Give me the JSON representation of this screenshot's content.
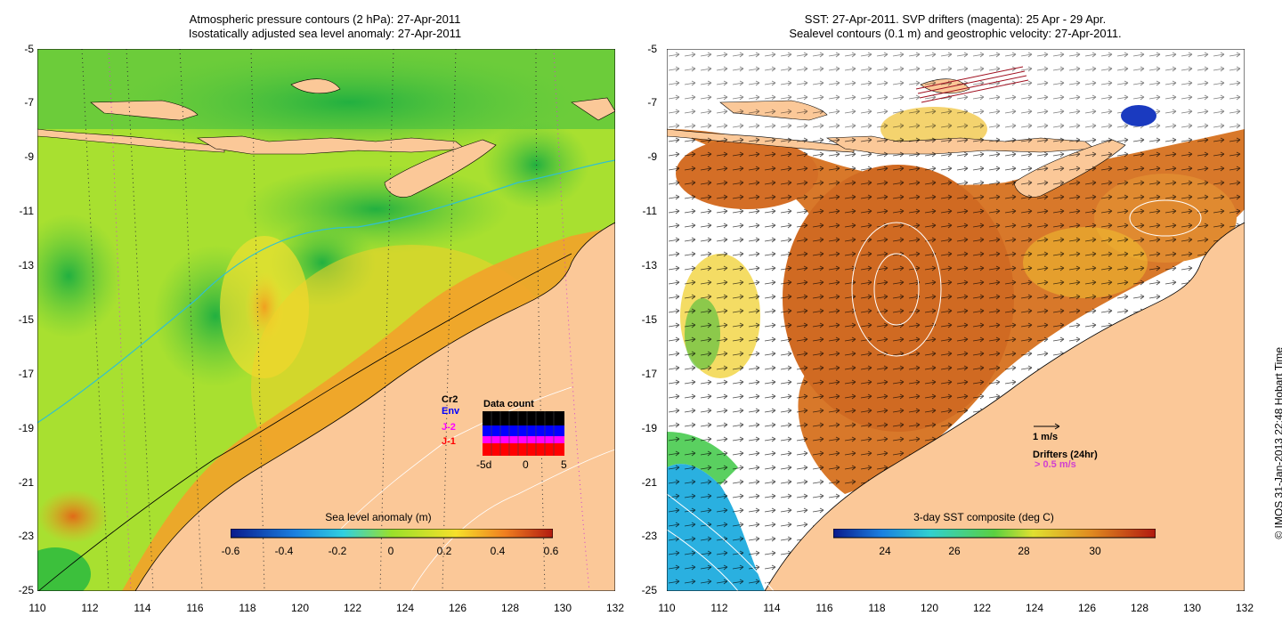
{
  "left_panel": {
    "title_line1": "Atmospheric pressure contours (2 hPa): 27-Apr-2011",
    "title_line2": "Isostatically adjusted sea level anomaly: 27-Apr-2011",
    "y_ticks": [
      "-5",
      "-7",
      "-9",
      "-11",
      "-13",
      "-15",
      "-17",
      "-19",
      "-21",
      "-23",
      "-25"
    ],
    "x_ticks": [
      "110",
      "112",
      "114",
      "116",
      "118",
      "120",
      "122",
      "124",
      "126",
      "128",
      "130",
      "132"
    ],
    "colorbar_label": "Sea level anomaly (m)",
    "colorbar_ticks": [
      "-0.6",
      "-0.4",
      "-0.2",
      "0",
      "0.2",
      "0.4",
      "0.6"
    ],
    "data_count": {
      "title": "Data count",
      "satellites": [
        {
          "name": "Cr2",
          "color": "#000000"
        },
        {
          "name": "Env",
          "color": "#0000ff"
        },
        {
          "name": "J-2",
          "color": "#ff00ff"
        },
        {
          "name": "J-1",
          "color": "#ff0000"
        }
      ],
      "axis_ticks": [
        "-5d",
        "0",
        "5"
      ]
    }
  },
  "right_panel": {
    "title_line1": "SST: 27-Apr-2011. SVP drifters (magenta): 25 Apr - 29 Apr.",
    "title_line2": "Sealevel contours (0.1 m) and geostrophic velocity: 27-Apr-2011.",
    "y_ticks": [
      "-5",
      "-7",
      "-9",
      "-11",
      "-13",
      "-15",
      "-17",
      "-19",
      "-21",
      "-23",
      "-25"
    ],
    "x_ticks": [
      "110",
      "112",
      "114",
      "116",
      "118",
      "120",
      "122",
      "124",
      "126",
      "128",
      "130",
      "132"
    ],
    "colorbar_label": "3-day SST composite (deg C)",
    "colorbar_ticks": [
      "24",
      "26",
      "28",
      "30"
    ],
    "velocity_legend": "1 m/s",
    "drifters_legend": "Drifters (24hr)",
    "drifter_speed": "> 0.5 m/s"
  },
  "credit": "© IMOS 31-Jan-2013 22:48 Hobart Time",
  "colors": {
    "land": "#fbc898",
    "sla_low": "#0a1a8c",
    "sla_mid": "#9ae02a",
    "sla_high": "#b11a10",
    "sst_warm": "#c8601e",
    "sst_cool": "#2ab0e0"
  }
}
